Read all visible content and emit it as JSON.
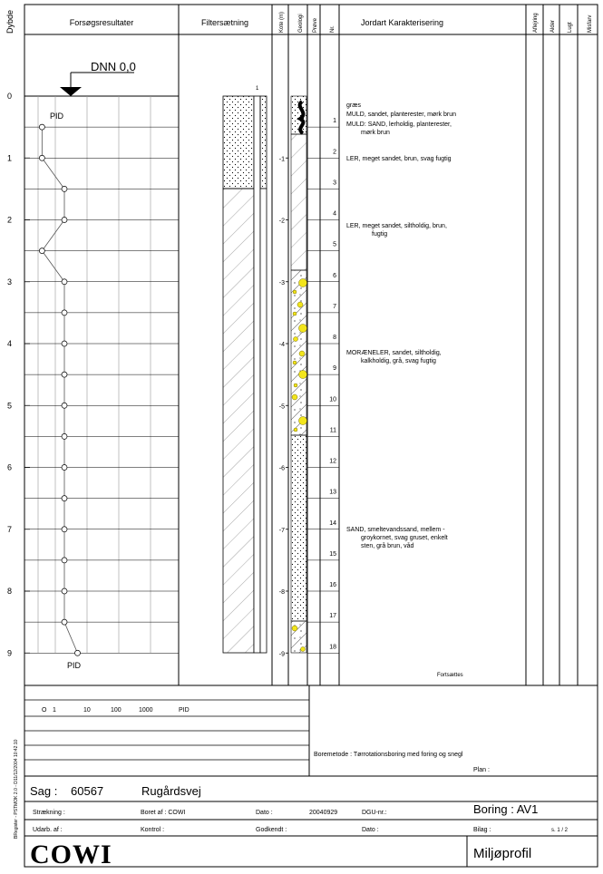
{
  "header": {
    "dybde": "Dybde",
    "forsoeg": "Forsøgsresultater",
    "filter": "Filtersætning",
    "kote": "Kote (m)",
    "geologi": "Geologi",
    "proeve": "Prøve",
    "nr": "Nr.",
    "jordart": "Jordart   Karakterisering",
    "aflejring": "Aflejring",
    "alder": "Alder",
    "lugt": "Lugt",
    "misfarv": "Misfarv"
  },
  "dnn_label": "DNN 0,0",
  "filter_mark": "1",
  "pid_top": "PID",
  "pid_bottom": "PID",
  "depth_ticks": [
    "0",
    "1",
    "2",
    "3",
    "4",
    "5",
    "6",
    "7",
    "8",
    "9"
  ],
  "kote_labels": [
    "-1",
    "-2",
    "-3",
    "-4",
    "-5",
    "-6",
    "-7",
    "-8",
    "-9"
  ],
  "sample_numbers": [
    "1",
    "2",
    "3",
    "4",
    "5",
    "6",
    "7",
    "8",
    "9",
    "10",
    "11",
    "12",
    "13",
    "14",
    "15",
    "16",
    "17",
    "18"
  ],
  "descriptions": [
    {
      "lines": [
        "græs"
      ]
    },
    {
      "lines": [
        "MULD, sandet, planterester, mørk brun"
      ]
    },
    {
      "lines": [
        "MULD: SAND, lerholdig, planterester,",
        "mørk brun"
      ]
    },
    {
      "lines": [
        "LER, meget sandet, brun, svag fugtig"
      ]
    },
    {
      "lines": [
        "LER, meget sandet, siltholdig, brun,",
        "fugtig"
      ]
    },
    {
      "lines": [
        "MORÆNELER, sandet, siltholdig,",
        "kalkholdig, grå, svag fugtig"
      ]
    },
    {
      "lines": [
        "SAND, smeltevandssand, mellem -",
        "groykornet, svag gruset, enkelt",
        "sten, grå brun, våd"
      ]
    }
  ],
  "fortsaettes": "Fortsættes",
  "pid_series": {
    "name": "PID",
    "depths": [
      0.5,
      1.0,
      1.5,
      2.0,
      2.5,
      3.0,
      3.5,
      4.0,
      4.5,
      5.0,
      5.5,
      6.0,
      6.5,
      7.0,
      7.5,
      8.0,
      8.5,
      9.0
    ],
    "values": [
      0.15,
      0.15,
      1.0,
      1.0,
      0.15,
      1.0,
      1.0,
      1.0,
      1.0,
      1.0,
      1.0,
      1.0,
      1.0,
      1.0,
      1.0,
      1.0,
      1.0,
      1.5
    ]
  },
  "legend": {
    "circle": "O",
    "scale": [
      "1",
      "10",
      "100",
      "1000"
    ],
    "label": "PID"
  },
  "boremetode": "Boremetode : Tørrotationsboring med foring og snegl",
  "plan": "Plan :",
  "side_text": "BRegister - PSTMOK 2.0 - D11/12/2004 10:42:10",
  "footer": {
    "sag_label": "Sag :",
    "sag_value": "60567",
    "name": "Rugårdsvej",
    "straekning": "Strækning :",
    "boret_af": "Boret af : COWI",
    "dato_label": "Dato :",
    "dato_value": "20040929",
    "dgu": "DGU-nr.:",
    "boring": "Boring : AV1",
    "udarb": "Udarb. af :",
    "kontrol": "Kontrol :",
    "godkendt": "Godkendt :",
    "dato2": "Dato :",
    "bilag": "Bilag :",
    "side": "s. 1 / 2",
    "logo": "COWI",
    "miljoe": "Miljøprofil"
  }
}
